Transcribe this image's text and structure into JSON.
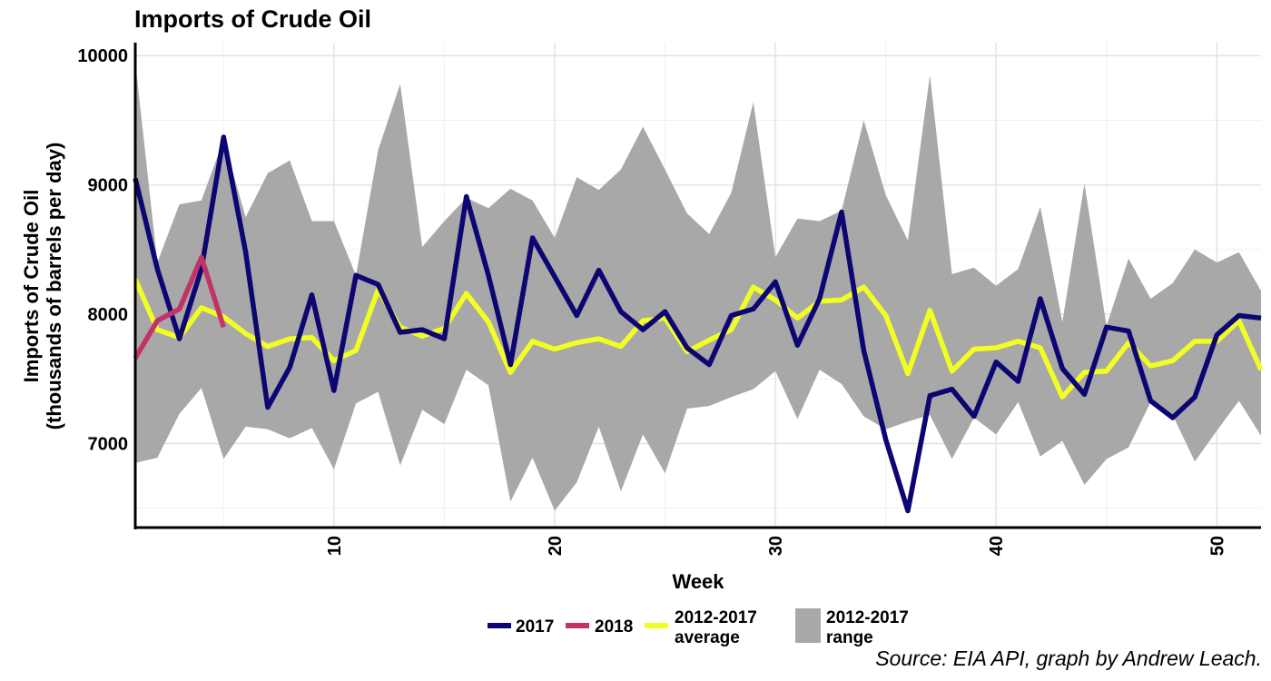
{
  "title": "Imports of Crude Oil",
  "source": "Source: EIA API, graph by Andrew Leach.",
  "chart_data": {
    "type": "line",
    "title": "Imports of Crude Oil",
    "xlabel": "Week",
    "ylabel_line1": "Imports of Crude Oil",
    "ylabel_line2": "(thousands of barrels per day)",
    "xlim": [
      1,
      52
    ],
    "ylim": [
      6350,
      10100
    ],
    "x_ticks": [
      10,
      20,
      30,
      40,
      50
    ],
    "y_ticks": [
      7000,
      8000,
      9000,
      10000
    ],
    "grid": true,
    "legend_position": "bottom",
    "colors": {
      "s2017": "#0d0572",
      "s2018": "#c1336a",
      "average": "#f2ff22",
      "range": "#a8a8a8"
    },
    "range": {
      "name": "2012-2017 range",
      "label_line1": "2012-2017",
      "label_line2": "range",
      "weeks": [
        1,
        2,
        3,
        4,
        5,
        6,
        7,
        8,
        9,
        10,
        11,
        12,
        13,
        14,
        15,
        16,
        17,
        18,
        19,
        20,
        21,
        22,
        23,
        24,
        25,
        26,
        27,
        28,
        29,
        30,
        31,
        32,
        33,
        34,
        35,
        36,
        37,
        38,
        39,
        40,
        41,
        42,
        43,
        44,
        45,
        46,
        47,
        48,
        49,
        50,
        51,
        52
      ],
      "upper": [
        9950,
        8400,
        8850,
        8880,
        9350,
        8750,
        9090,
        9190,
        8720,
        8720,
        8300,
        9270,
        9780,
        8520,
        8720,
        8900,
        8820,
        8970,
        8880,
        8590,
        9060,
        8960,
        9120,
        9450,
        9120,
        8780,
        8620,
        8940,
        9640,
        8440,
        8740,
        8720,
        8800,
        9500,
        8920,
        8570,
        9850,
        8310,
        8360,
        8220,
        8350,
        8830,
        7940,
        9010,
        7910,
        8430,
        8120,
        8240,
        8500,
        8400,
        8480,
        8180
      ],
      "lower": [
        6850,
        6890,
        7230,
        7430,
        6880,
        7130,
        7110,
        7040,
        7120,
        6800,
        7310,
        7400,
        6830,
        7260,
        7150,
        7570,
        7450,
        6550,
        6890,
        6480,
        6700,
        7130,
        6630,
        7070,
        6770,
        7270,
        7290,
        7360,
        7420,
        7560,
        7190,
        7570,
        7460,
        7210,
        7110,
        7170,
        7220,
        6880,
        7200,
        7070,
        7320,
        6900,
        7020,
        6680,
        6880,
        6970,
        7320,
        7220,
        6860,
        7100,
        7330,
        7060
      ]
    },
    "series": [
      {
        "name": "2017",
        "x": [
          1,
          2,
          3,
          4,
          5,
          6,
          7,
          8,
          9,
          10,
          11,
          12,
          13,
          14,
          15,
          16,
          17,
          18,
          19,
          20,
          21,
          22,
          23,
          24,
          25,
          26,
          27,
          28,
          29,
          30,
          31,
          32,
          33,
          34,
          35,
          36,
          37,
          38,
          39,
          40,
          41,
          42,
          43,
          44,
          45,
          46,
          47,
          48,
          49,
          50,
          51,
          52
        ],
        "y": [
          9050,
          8350,
          7810,
          8350,
          9370,
          8480,
          7280,
          7590,
          8150,
          7410,
          8300,
          8230,
          7860,
          7880,
          7810,
          8910,
          8300,
          7610,
          8590,
          8290,
          7990,
          8340,
          8020,
          7880,
          8020,
          7740,
          7610,
          7990,
          8040,
          8250,
          7760,
          8120,
          8790,
          7720,
          7030,
          6480,
          7370,
          7420,
          7210,
          7630,
          7480,
          8120,
          7580,
          7380,
          7900,
          7870,
          7330,
          7200,
          7360,
          7840,
          7990,
          7970
        ]
      },
      {
        "name": "2018",
        "x": [
          1,
          2,
          3,
          4,
          5
        ],
        "y": [
          7660,
          7950,
          8040,
          8440,
          7900
        ]
      },
      {
        "name": "2012-2017 average",
        "label_line1": "2012-2017",
        "label_line2": "average",
        "x": [
          1,
          2,
          3,
          4,
          5,
          6,
          7,
          8,
          9,
          10,
          11,
          12,
          13,
          14,
          15,
          16,
          17,
          18,
          19,
          20,
          21,
          22,
          23,
          24,
          25,
          26,
          27,
          28,
          29,
          30,
          31,
          32,
          33,
          34,
          35,
          36,
          37,
          38,
          39,
          40,
          41,
          42,
          43,
          44,
          45,
          46,
          47,
          48,
          49,
          50,
          51,
          52
        ],
        "y": [
          8270,
          7880,
          7820,
          8050,
          7980,
          7850,
          7750,
          7810,
          7820,
          7640,
          7720,
          8190,
          7900,
          7830,
          7890,
          8160,
          7940,
          7550,
          7790,
          7730,
          7780,
          7810,
          7750,
          7950,
          7970,
          7710,
          7800,
          7880,
          8210,
          8110,
          7970,
          8100,
          8110,
          8210,
          7990,
          7540,
          8030,
          7560,
          7730,
          7740,
          7790,
          7740,
          7360,
          7550,
          7560,
          7780,
          7600,
          7640,
          7790,
          7790,
          7950,
          7570
        ]
      }
    ]
  }
}
